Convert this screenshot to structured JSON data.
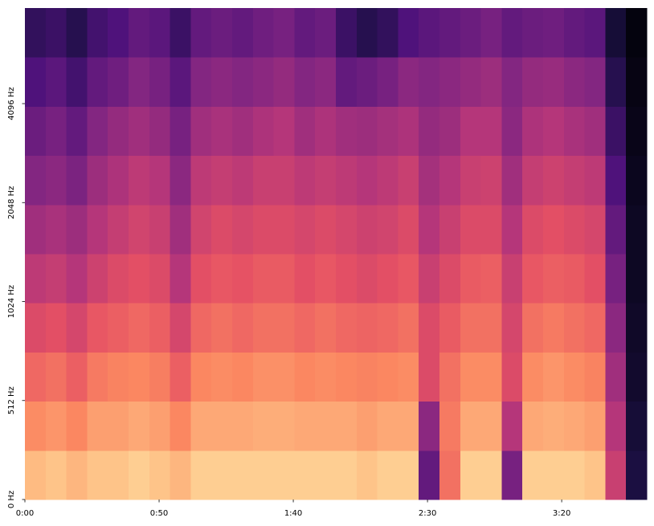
{
  "chart_data": {
    "type": "heatmap",
    "colormap": "magma",
    "yscale": "symlog",
    "xlim": [
      0,
      231.7
    ],
    "ylim": [
      0,
      8000
    ],
    "xticks": [
      {
        "value": 0,
        "label": "0:00"
      },
      {
        "value": 50,
        "label": "0:50"
      },
      {
        "value": 100,
        "label": "1:40"
      },
      {
        "value": 150,
        "label": "2:30"
      },
      {
        "value": 200,
        "label": "3:20"
      }
    ],
    "yticks": [
      {
        "value": 0,
        "label": "0 Hz"
      },
      {
        "value": 512,
        "label": "512 Hz"
      },
      {
        "value": 1024,
        "label": "1024 Hz"
      },
      {
        "value": 2048,
        "label": "2048 Hz"
      },
      {
        "value": 4096,
        "label": "4096 Hz"
      }
    ],
    "z": [
      [
        0.86,
        0.88,
        0.85,
        0.88,
        0.88,
        0.9,
        0.88,
        0.85,
        0.9,
        0.9,
        0.9,
        0.9,
        0.9,
        0.9,
        0.9,
        0.9,
        0.88,
        0.9,
        0.9,
        0.3,
        0.7,
        0.9,
        0.9,
        0.35,
        0.9,
        0.9,
        0.9,
        0.88,
        0.55,
        0.12
      ],
      [
        0.76,
        0.78,
        0.75,
        0.8,
        0.8,
        0.82,
        0.8,
        0.75,
        0.82,
        0.82,
        0.82,
        0.83,
        0.83,
        0.82,
        0.82,
        0.82,
        0.8,
        0.82,
        0.82,
        0.4,
        0.72,
        0.82,
        0.82,
        0.5,
        0.82,
        0.83,
        0.82,
        0.8,
        0.5,
        0.1
      ],
      [
        0.68,
        0.7,
        0.66,
        0.72,
        0.74,
        0.75,
        0.73,
        0.66,
        0.75,
        0.76,
        0.75,
        0.77,
        0.77,
        0.75,
        0.76,
        0.75,
        0.74,
        0.75,
        0.76,
        0.6,
        0.7,
        0.76,
        0.76,
        0.6,
        0.76,
        0.78,
        0.76,
        0.74,
        0.45,
        0.08
      ],
      [
        0.6,
        0.62,
        0.58,
        0.64,
        0.66,
        0.68,
        0.66,
        0.58,
        0.68,
        0.7,
        0.68,
        0.7,
        0.7,
        0.68,
        0.7,
        0.68,
        0.67,
        0.68,
        0.7,
        0.6,
        0.65,
        0.7,
        0.7,
        0.58,
        0.7,
        0.72,
        0.7,
        0.68,
        0.4,
        0.07
      ],
      [
        0.52,
        0.54,
        0.5,
        0.56,
        0.6,
        0.62,
        0.6,
        0.5,
        0.62,
        0.64,
        0.63,
        0.65,
        0.65,
        0.62,
        0.64,
        0.62,
        0.6,
        0.62,
        0.64,
        0.55,
        0.6,
        0.65,
        0.66,
        0.55,
        0.64,
        0.66,
        0.65,
        0.62,
        0.35,
        0.06
      ],
      [
        0.45,
        0.47,
        0.44,
        0.5,
        0.54,
        0.57,
        0.55,
        0.45,
        0.57,
        0.6,
        0.58,
        0.6,
        0.6,
        0.58,
        0.6,
        0.58,
        0.56,
        0.57,
        0.6,
        0.5,
        0.55,
        0.6,
        0.6,
        0.5,
        0.6,
        0.62,
        0.6,
        0.58,
        0.3,
        0.06
      ],
      [
        0.38,
        0.4,
        0.36,
        0.44,
        0.48,
        0.52,
        0.5,
        0.4,
        0.52,
        0.54,
        0.52,
        0.55,
        0.55,
        0.52,
        0.54,
        0.52,
        0.5,
        0.52,
        0.55,
        0.46,
        0.5,
        0.55,
        0.56,
        0.45,
        0.54,
        0.56,
        0.54,
        0.52,
        0.25,
        0.05
      ],
      [
        0.32,
        0.35,
        0.3,
        0.38,
        0.42,
        0.45,
        0.42,
        0.35,
        0.45,
        0.47,
        0.45,
        0.48,
        0.5,
        0.45,
        0.48,
        0.45,
        0.44,
        0.46,
        0.48,
        0.42,
        0.44,
        0.5,
        0.5,
        0.4,
        0.48,
        0.5,
        0.47,
        0.45,
        0.2,
        0.04
      ],
      [
        0.25,
        0.28,
        0.22,
        0.3,
        0.33,
        0.38,
        0.35,
        0.28,
        0.38,
        0.4,
        0.38,
        0.4,
        0.42,
        0.38,
        0.4,
        0.3,
        0.32,
        0.35,
        0.4,
        0.38,
        0.4,
        0.42,
        0.44,
        0.38,
        0.42,
        0.43,
        0.4,
        0.38,
        0.15,
        0.03
      ],
      [
        0.18,
        0.2,
        0.15,
        0.22,
        0.25,
        0.3,
        0.28,
        0.2,
        0.3,
        0.32,
        0.3,
        0.33,
        0.35,
        0.3,
        0.32,
        0.2,
        0.15,
        0.18,
        0.25,
        0.28,
        0.3,
        0.32,
        0.35,
        0.3,
        0.32,
        0.33,
        0.3,
        0.28,
        0.1,
        0.02
      ]
    ]
  }
}
